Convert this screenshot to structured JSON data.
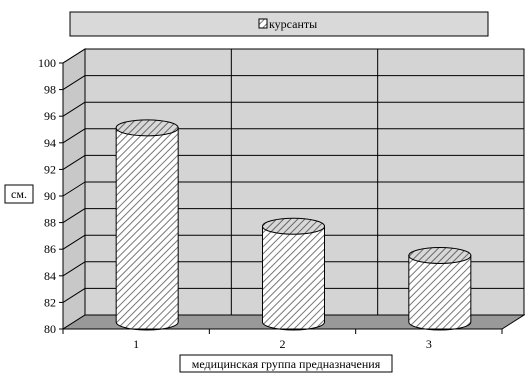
{
  "chart_data": {
    "type": "bar",
    "style": "3d-cylinder",
    "categories": [
      "1",
      "2",
      "3"
    ],
    "series": [
      {
        "name": "курсанты",
        "values": [
          94.6,
          87.2,
          85.0
        ]
      }
    ],
    "xlabel": "медицинская группа предназначения",
    "ylabel": "см.",
    "ylim": [
      80,
      100
    ],
    "yticks": [
      80,
      82,
      84,
      86,
      88,
      90,
      92,
      94,
      96,
      98,
      100
    ],
    "grid": true,
    "legend": "top",
    "colors": {
      "wall": "#d4d4d4",
      "floor": "#999999",
      "bar": "#ffffff",
      "hatch": "#777777"
    }
  }
}
